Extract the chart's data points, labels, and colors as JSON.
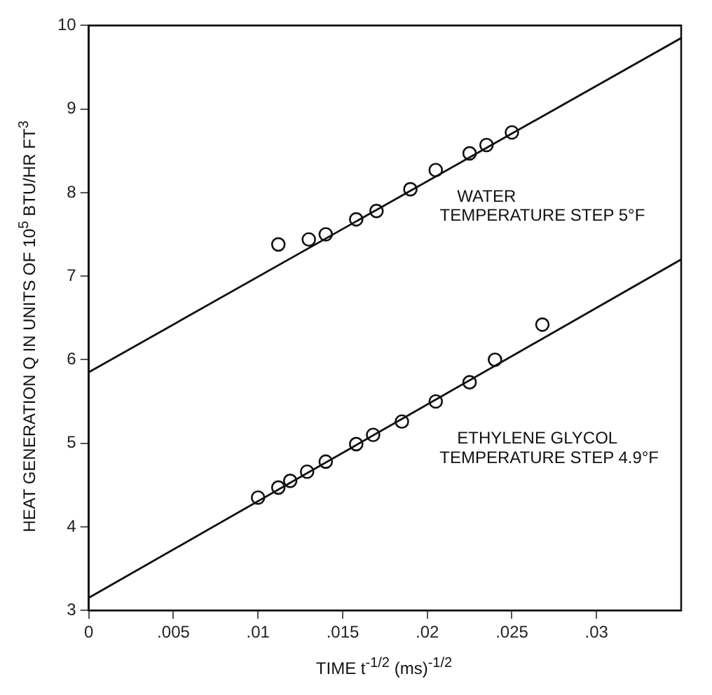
{
  "chart_data": {
    "type": "scatter",
    "xlabel": "TIME  t$^{-1/2}$ (ms)$^{-1/2}$",
    "ylabel": "HEAT GENERATION Q IN UNITS OF 10$^{5}$ BTU/HR FT$^{3}$",
    "xlim": [
      0,
      0.035
    ],
    "xticks": [
      0,
      {
        "value": 0.005,
        "label": ".005"
      },
      {
        "value": 0.01,
        "label": ".01"
      },
      {
        "value": 0.015,
        "label": ".015"
      },
      {
        "value": 0.02,
        "label": ".02"
      },
      {
        "value": 0.025,
        "label": ".025"
      },
      {
        "value": 0.03,
        "label": ".03"
      }
    ],
    "ylim": [
      3,
      10
    ],
    "yticks": [
      3,
      4,
      5,
      6,
      7,
      8,
      9,
      10
    ],
    "grid": false,
    "legend": false,
    "marker": "circle",
    "series": [
      {
        "type": "scatter",
        "color": "#111111",
        "x": [
          0.0112,
          0.013,
          0.014,
          0.0158,
          0.017,
          0.019,
          0.0205,
          0.0225,
          0.0235,
          0.025
        ],
        "values": [
          7.38,
          7.44,
          7.5,
          7.68,
          7.78,
          8.04,
          8.27,
          8.47,
          8.57,
          8.72
        ]
      },
      {
        "type": "scatter",
        "color": "#111111",
        "x": [
          0.01,
          0.0112,
          0.0119,
          0.0129,
          0.014,
          0.0158,
          0.0168,
          0.0185,
          0.0205,
          0.0225,
          0.024,
          0.0268
        ],
        "values": [
          4.35,
          4.47,
          4.55,
          4.66,
          4.78,
          4.99,
          5.1,
          5.26,
          5.5,
          5.73,
          6.0,
          6.42
        ]
      },
      {
        "type": "line",
        "color": "#111111",
        "marker": "none",
        "x": [
          0,
          0.035
        ],
        "values": [
          5.85,
          9.85
        ]
      },
      {
        "type": "line",
        "color": "#111111",
        "marker": "none",
        "x": [
          0,
          0.035
        ],
        "values": [
          3.15,
          7.2
        ]
      }
    ],
    "annotations": [
      "WATER",
      "TEMPERATURE STEP 5°F",
      "ETHYLENE GLYCOL",
      "TEMPERATURE STEP 4.9°F"
    ]
  }
}
